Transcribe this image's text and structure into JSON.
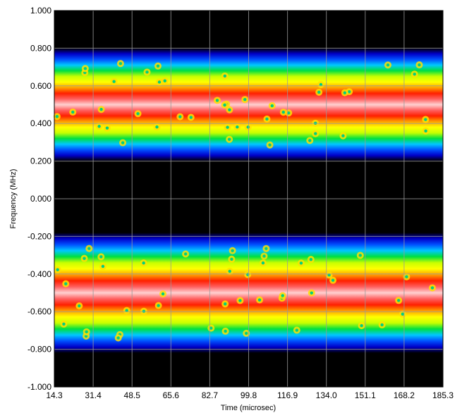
{
  "chart_data": {
    "type": "heatmap",
    "title": "",
    "xlabel": "Time (microsec)",
    "ylabel": "Frequency (MHz)",
    "x_ticks": [
      "14.3",
      "31.4",
      "48.5",
      "65.6",
      "82.7",
      "99.8",
      "116.9",
      "134.0",
      "151.1",
      "168.2",
      "185.3"
    ],
    "y_ticks": [
      "1.000",
      "0.800",
      "0.600",
      "0.400",
      "0.200",
      "0.000",
      "-0.200",
      "-0.400",
      "-0.600",
      "-0.800",
      "-1.000"
    ],
    "xlim": [
      14.3,
      185.3
    ],
    "ylim": [
      -1.0,
      1.0
    ],
    "grid": true,
    "colormap": [
      "#000000",
      "#0000c8",
      "#0050ff",
      "#00c8ff",
      "#00e040",
      "#c8ff00",
      "#ffff00",
      "#ffa000",
      "#ff2000",
      "#ff6060",
      "#ffd0d0"
    ],
    "bands": [
      {
        "center": 0.5,
        "half_width": 0.3,
        "peak": "#ffd0d0"
      },
      {
        "center": -0.5,
        "half_width": 0.32,
        "peak": "#ffd0d0"
      }
    ]
  }
}
